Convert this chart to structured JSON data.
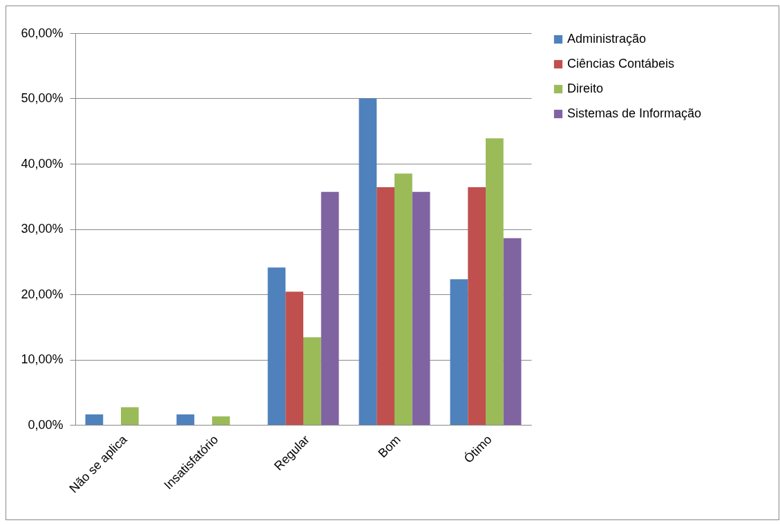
{
  "chart_data": {
    "type": "bar",
    "categories": [
      "Não se aplica",
      "Insatisfatório",
      "Regular",
      "Bom",
      "Ótimo"
    ],
    "series": [
      {
        "name": "Administração",
        "color": "#4f81bd",
        "values": [
          1.6,
          1.6,
          24.1,
          50.0,
          22.3
        ]
      },
      {
        "name": "Ciências Contábeis",
        "color": "#c0504d",
        "values": [
          null,
          null,
          20.4,
          36.4,
          36.4
        ]
      },
      {
        "name": "Direito",
        "color": "#9bbb59",
        "values": [
          2.7,
          1.3,
          13.4,
          38.5,
          43.9
        ]
      },
      {
        "name": "Sistemas de Informação",
        "color": "#8064a2",
        "values": [
          null,
          null,
          35.7,
          35.7,
          28.6
        ]
      }
    ],
    "ylim": [
      0,
      60
    ],
    "yticks": [
      {
        "value": 0,
        "label": "0,00%"
      },
      {
        "value": 10,
        "label": "10,00%"
      },
      {
        "value": 20,
        "label": "20,00%"
      },
      {
        "value": 30,
        "label": "30,00%"
      },
      {
        "value": 40,
        "label": "40,00%"
      },
      {
        "value": 50,
        "label": "50,00%"
      },
      {
        "value": 60,
        "label": "60,00%"
      }
    ],
    "grid": "y",
    "legend": "right"
  }
}
